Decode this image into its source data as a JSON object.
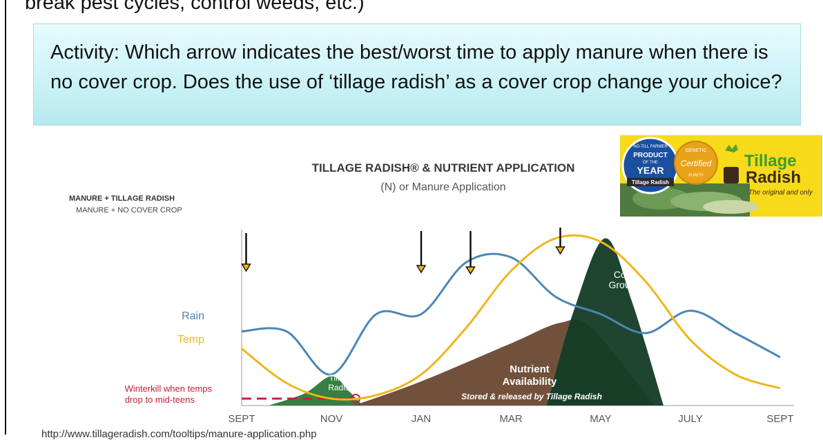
{
  "slide": {
    "top_text": "break pest cycles, control weeds, etc.)",
    "activity_text": "Activity: Which arrow indicates the best/worst time to apply manure when there is no cover crop.  Does the use of ‘tillage radish’ as a cover crop change your choice?",
    "bottom_url": "http://www.tillageradish.com/tooltips/manure-application.php"
  },
  "badge": {
    "ribbon": "NO-TILL FARMER",
    "product": "PRODUCT",
    "of_the": "OF THE",
    "year": "YEAR",
    "tillage_radish": "Tillage Radish",
    "seal_top": "GENETIC",
    "seal_mid": "Certified",
    "seal_bottom": "PURITY",
    "brand_line1": "Tillage",
    "brand_line2": "Radish",
    "tagline": "The original and only"
  },
  "chart_data": {
    "type": "area",
    "title": "TILLAGE RADISH® & NUTRIENT APPLICATION",
    "subtitle": "(N) or Manure Application",
    "legend": [
      "MANURE + TILLAGE RADISH",
      "MANURE + NO COVER CROP"
    ],
    "x_ticks": [
      "SEPT",
      "NOV",
      "JAN",
      "MAR",
      "MAY",
      "JULY",
      "SEPT"
    ],
    "arrow_months": [
      "SEPT",
      "JAN",
      "FEB",
      "APR"
    ],
    "series": [
      {
        "name": "Rain",
        "color": "#4a86b6",
        "type": "line",
        "x": [
          0,
          0.5,
          1,
          1.5,
          2,
          2.5,
          3,
          3.5,
          4,
          4.5,
          5,
          5.5,
          6
        ],
        "y": [
          0.43,
          0.43,
          0.18,
          0.53,
          0.53,
          0.83,
          0.86,
          0.63,
          0.53,
          0.42,
          0.55,
          0.42,
          0.28
        ]
      },
      {
        "name": "Temp",
        "color": "#f0b618",
        "type": "line",
        "x": [
          0,
          0.5,
          1,
          1.5,
          2,
          2.5,
          3,
          3.5,
          4,
          4.5,
          5,
          5.5,
          6
        ],
        "y": [
          0.33,
          0.13,
          0.04,
          0.06,
          0.18,
          0.45,
          0.78,
          0.97,
          0.95,
          0.72,
          0.38,
          0.18,
          0.1
        ]
      },
      {
        "name": "Tillage Radish",
        "color": "#2f7a3a",
        "type": "area",
        "x": [
          0.3,
          0.7,
          1.0,
          1.2,
          1.35
        ],
        "y": [
          0.0,
          0.07,
          0.17,
          0.08,
          0.0
        ]
      },
      {
        "name": "Nutrient Availability",
        "color": "#6b4a33",
        "type": "area",
        "x": [
          1.25,
          2.0,
          3.0,
          3.55,
          3.9,
          4.6
        ],
        "y": [
          0.0,
          0.14,
          0.36,
          0.48,
          0.45,
          0.0
        ]
      },
      {
        "name": "Corn Growth",
        "color": "#163d28",
        "type": "area",
        "x": [
          3.4,
          3.7,
          4.05,
          4.35,
          4.7
        ],
        "y": [
          0.0,
          0.55,
          0.97,
          0.6,
          0.0
        ]
      }
    ],
    "winterkill_label": [
      "Winterkill when temps",
      "drop to mid-teens"
    ],
    "area_labels": {
      "tillage": [
        "Tillage",
        "Radish"
      ],
      "nutrient": [
        "Nutrient",
        "Availability"
      ],
      "nutrient_sub": "Stored & released by Tillage Radish",
      "corn": [
        "Corn",
        "Growth"
      ]
    },
    "colors": {
      "rain": "#4a86b6",
      "temp": "#f0b618",
      "tillage": "#2f7a3a",
      "nutrient": "#6b4a33",
      "corn": "#163d28",
      "winterkill": "#c8203a",
      "arrow_head": "#f0b618"
    }
  }
}
